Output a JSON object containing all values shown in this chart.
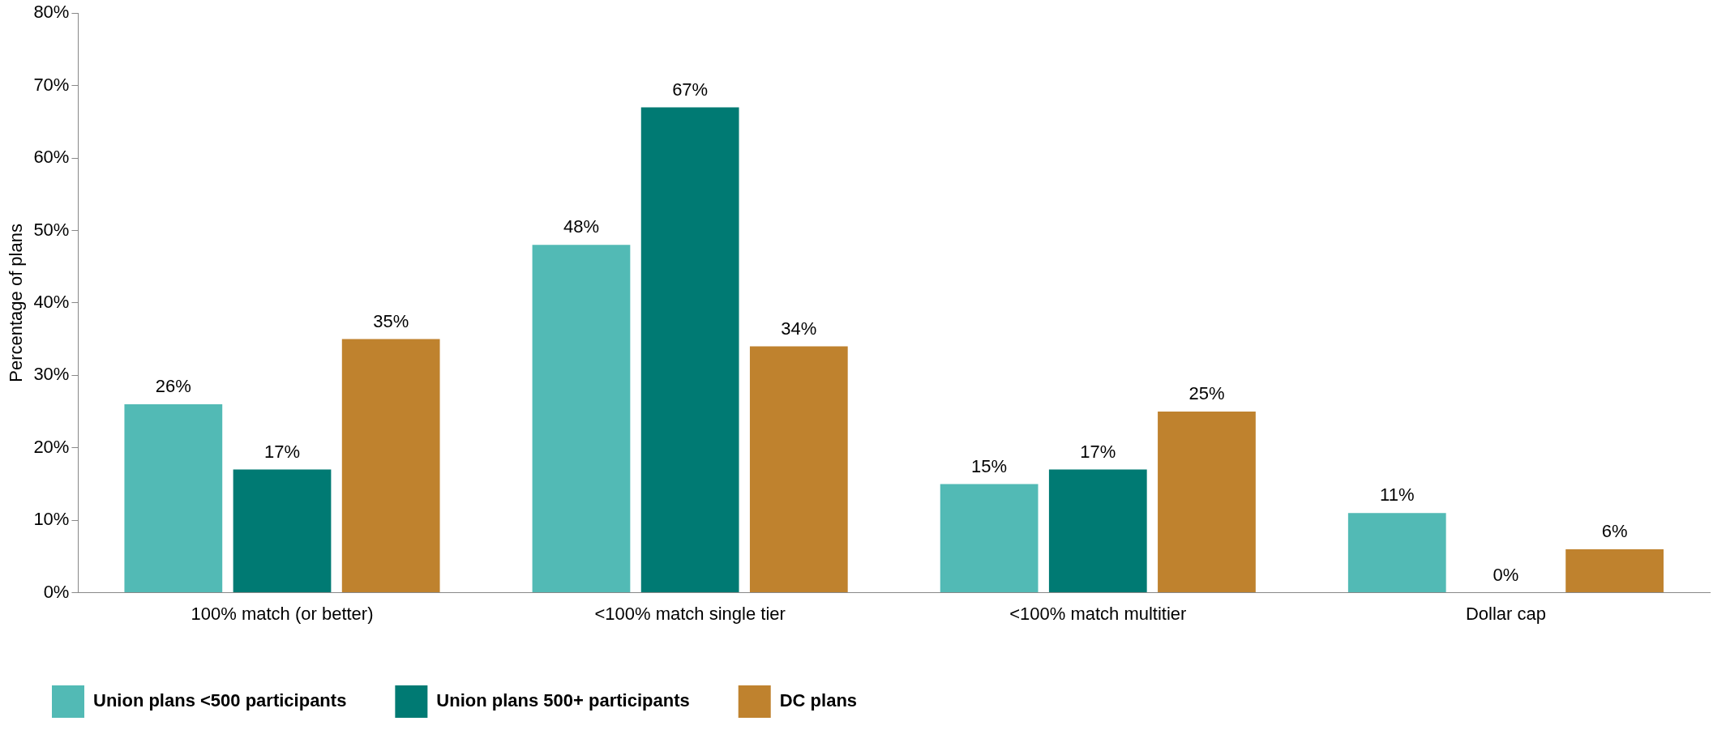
{
  "chart_data": {
    "type": "bar",
    "ylabel": "Percentage of plans",
    "categories": [
      "100% match (or better)",
      "<100% match single tier",
      "<100% match multitier",
      "Dollar cap"
    ],
    "series": [
      {
        "name": "Union plans <500 participants",
        "color": "#52bab5",
        "values": [
          26,
          48,
          15,
          11
        ],
        "value_labels": [
          "26%",
          "48%",
          "15%",
          "11%"
        ]
      },
      {
        "name": "Union plans 500+ participants",
        "color": "#007a73",
        "values": [
          17,
          67,
          17,
          0
        ],
        "value_labels": [
          "17%",
          "67%",
          "17%",
          "0%"
        ]
      },
      {
        "name": "DC plans",
        "color": "#bf822e",
        "values": [
          35,
          34,
          25,
          6
        ],
        "value_labels": [
          "35%",
          "34%",
          "25%",
          "6%"
        ]
      }
    ],
    "ylim": [
      0,
      80
    ],
    "yticks": [
      {
        "value": 0,
        "label": "0%"
      },
      {
        "value": 10,
        "label": "10%"
      },
      {
        "value": 20,
        "label": "20%"
      },
      {
        "value": 30,
        "label": "30%"
      },
      {
        "value": 40,
        "label": "40%"
      },
      {
        "value": 50,
        "label": "50%"
      },
      {
        "value": 60,
        "label": "60%"
      },
      {
        "value": 70,
        "label": "70%"
      },
      {
        "value": 80,
        "label": "80%"
      }
    ],
    "grid": false,
    "legend": "bottom left"
  }
}
